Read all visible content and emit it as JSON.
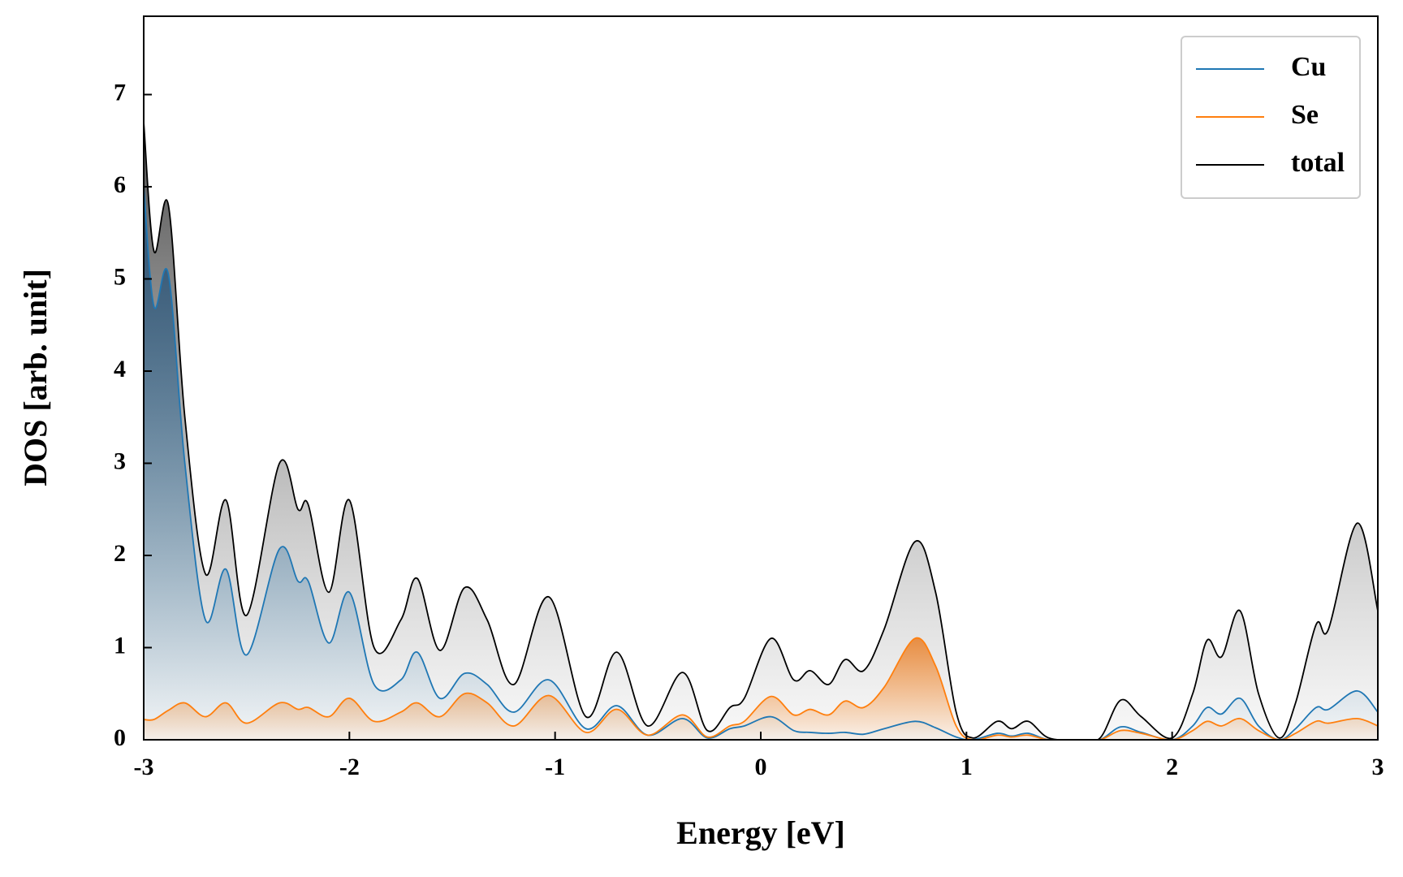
{
  "chart_data": {
    "type": "line",
    "xlabel": "Energy [eV]",
    "ylabel": "DOS [arb. unit]",
    "x": [
      -3,
      -2.95,
      -2.88,
      -2.8,
      -2.7,
      -2.6,
      -2.5,
      -2.34,
      -2.25,
      -2.2,
      -2.1,
      -2.0,
      -1.88,
      -1.75,
      -1.67,
      -1.56,
      -1.44,
      -1.33,
      -1.2,
      -1.03,
      -0.85,
      -0.7,
      -0.55,
      -0.38,
      -0.26,
      -0.15,
      -0.08,
      0.05,
      0.16,
      0.24,
      0.33,
      0.41,
      0.5,
      0.6,
      0.75,
      0.85,
      0.95,
      1.03,
      1.15,
      1.22,
      1.3,
      1.4,
      1.55,
      1.65,
      1.75,
      1.85,
      2.0,
      2.1,
      2.17,
      2.24,
      2.33,
      2.42,
      2.52,
      2.6,
      2.7,
      2.76,
      2.9,
      3.0
    ],
    "series": [
      {
        "name": "Cu",
        "color": "#1f77b4",
        "values": [
          6.0,
          4.7,
          5.05,
          3.0,
          1.3,
          1.85,
          0.92,
          2.07,
          1.72,
          1.72,
          1.05,
          1.6,
          0.6,
          0.65,
          0.95,
          0.45,
          0.72,
          0.6,
          0.3,
          0.65,
          0.12,
          0.37,
          0.05,
          0.23,
          0.02,
          0.12,
          0.15,
          0.25,
          0.1,
          0.08,
          0.07,
          0.08,
          0.06,
          0.12,
          0.2,
          0.13,
          0.03,
          0.0,
          0.07,
          0.04,
          0.07,
          0.0,
          0.0,
          0.0,
          0.14,
          0.08,
          0.0,
          0.15,
          0.35,
          0.28,
          0.45,
          0.15,
          0.0,
          0.12,
          0.35,
          0.33,
          0.53,
          0.3
        ]
      },
      {
        "name": "Se",
        "color": "#ff7f0e",
        "values": [
          0.22,
          0.22,
          0.32,
          0.4,
          0.25,
          0.4,
          0.18,
          0.4,
          0.33,
          0.35,
          0.25,
          0.45,
          0.2,
          0.3,
          0.4,
          0.25,
          0.5,
          0.4,
          0.15,
          0.48,
          0.08,
          0.33,
          0.05,
          0.27,
          0.03,
          0.15,
          0.2,
          0.47,
          0.27,
          0.33,
          0.27,
          0.42,
          0.35,
          0.57,
          1.1,
          0.8,
          0.15,
          0.0,
          0.05,
          0.03,
          0.05,
          0.0,
          0.0,
          0.0,
          0.1,
          0.07,
          0.0,
          0.1,
          0.2,
          0.15,
          0.23,
          0.1,
          0.0,
          0.07,
          0.2,
          0.18,
          0.23,
          0.15
        ]
      },
      {
        "name": "total",
        "color": "#000000",
        "values": [
          6.7,
          5.3,
          5.8,
          3.5,
          1.8,
          2.6,
          1.35,
          3.0,
          2.5,
          2.55,
          1.6,
          2.6,
          1.0,
          1.3,
          1.75,
          0.97,
          1.65,
          1.3,
          0.6,
          1.55,
          0.25,
          0.95,
          0.15,
          0.73,
          0.1,
          0.35,
          0.45,
          1.1,
          0.65,
          0.75,
          0.6,
          0.87,
          0.75,
          1.2,
          2.15,
          1.6,
          0.3,
          0.02,
          0.2,
          0.12,
          0.2,
          0.02,
          0.0,
          0.02,
          0.43,
          0.25,
          0.02,
          0.5,
          1.08,
          0.9,
          1.4,
          0.5,
          0.02,
          0.4,
          1.25,
          1.2,
          2.35,
          1.4
        ]
      }
    ],
    "xlim": [
      -3,
      3
    ],
    "xticks": [
      -3,
      -2,
      -1,
      0,
      1,
      2,
      3
    ],
    "ylim": [
      0,
      7.85
    ],
    "yticks": [
      0,
      1,
      2,
      3,
      4,
      5,
      6,
      7
    ],
    "legend": "upper right",
    "grid": false
  }
}
